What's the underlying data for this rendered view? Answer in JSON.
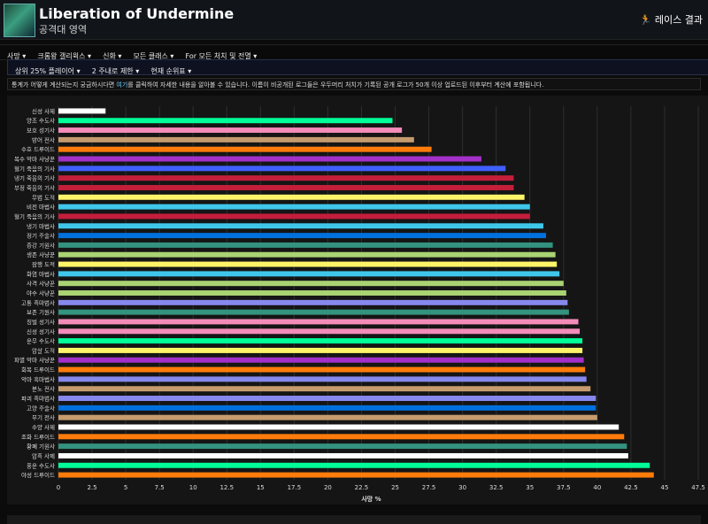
{
  "header": {
    "title": "Liberation of Undermine",
    "subtitle": "공격대 영역",
    "race_label": "레이스 결과"
  },
  "menu": [
    "사망",
    "크롬왕 갤리윅스",
    "신화",
    "모든 클래스",
    "For 모든 처치 및 전멸"
  ],
  "filters": [
    "상위 25% 플레이어",
    "2 주내로 제한",
    "현재 순위표"
  ],
  "info": {
    "text_before": "통계가 어떻게 계산되는지 궁금하시다면 ",
    "link": "여기",
    "text_after": "를 클릭하여 자세한 내용을 알아볼 수 있습니다. 이름이 비공개된 로그들은 우두머리 처치가 기록된 공개 로그가 50개 이상 업로드된 이후부터 계산에 포함됩니다."
  },
  "chart_data": {
    "type": "bar",
    "orientation": "horizontal",
    "xlabel": "사망 %",
    "xlim": [
      0,
      47.5
    ],
    "xticks": [
      "0",
      "2.5",
      "5",
      "7.5",
      "10",
      "12.5",
      "15",
      "17.5",
      "20",
      "22.5",
      "25",
      "27.5",
      "30",
      "32.5",
      "35",
      "37.5",
      "40",
      "42.5",
      "45",
      "47.5"
    ],
    "grid": true,
    "categories": [
      "신성 사제",
      "양조 수도사",
      "보호 성기사",
      "방어 전사",
      "수호 드루이드",
      "복수 악마 사냥꾼",
      "혈기 죽음의 기사",
      "냉기 죽음의 기사",
      "부정 죽음의 기사",
      "무법 도적",
      "비전 마법사",
      "혈기 죽음의 기사",
      "냉기 마법사",
      "정기 주술사",
      "증강 기원사",
      "생존 사냥꾼",
      "잠행 도적",
      "화염 마법사",
      "사격 사냥꾼",
      "야수 사냥꾼",
      "고통 흑마법사",
      "보존 기원사",
      "징벌 성기사",
      "신성 성기사",
      "운무 수도사",
      "암살 도적",
      "파멸 악마 사냥꾼",
      "회복 드루이드",
      "악마 흑마법사",
      "분노 전사",
      "파괴 흑마법사",
      "고양 주술사",
      "무기 전사",
      "수양 사제",
      "조화 드루이드",
      "황폐 기원사",
      "암흑 사제",
      "풍운 수도사",
      "야성 드루이드"
    ],
    "values": [
      3.5,
      24.8,
      25.5,
      26.4,
      27.7,
      31.4,
      33.2,
      33.8,
      33.8,
      34.6,
      35.0,
      35.0,
      36.0,
      36.2,
      36.7,
      36.9,
      37.0,
      37.2,
      37.5,
      37.7,
      37.8,
      37.9,
      38.6,
      38.7,
      38.9,
      38.9,
      39.0,
      39.1,
      39.2,
      39.5,
      39.9,
      39.9,
      40.0,
      41.6,
      42.0,
      42.2,
      42.3,
      43.9,
      44.2
    ],
    "colors": [
      "#ffffff",
      "#00ff98",
      "#f48cba",
      "#c69b6d",
      "#ff7c0a",
      "#a330c9",
      "#3f5fff",
      "#c41e3a",
      "#c41e3a",
      "#fff468",
      "#3fc7eb",
      "#c41e3a",
      "#3fc7eb",
      "#0070dd",
      "#33937f",
      "#aad372",
      "#fff468",
      "#3fc7eb",
      "#aad372",
      "#aad372",
      "#8788ee",
      "#33937f",
      "#f48cba",
      "#f48cba",
      "#00ff98",
      "#fff468",
      "#a330c9",
      "#ff7c0a",
      "#8788ee",
      "#c69b6d",
      "#8788ee",
      "#0070dd",
      "#c69b6d",
      "#ffffff",
      "#ff7c0a",
      "#33937f",
      "#ffffff",
      "#00ff98",
      "#ff7c0a"
    ]
  }
}
